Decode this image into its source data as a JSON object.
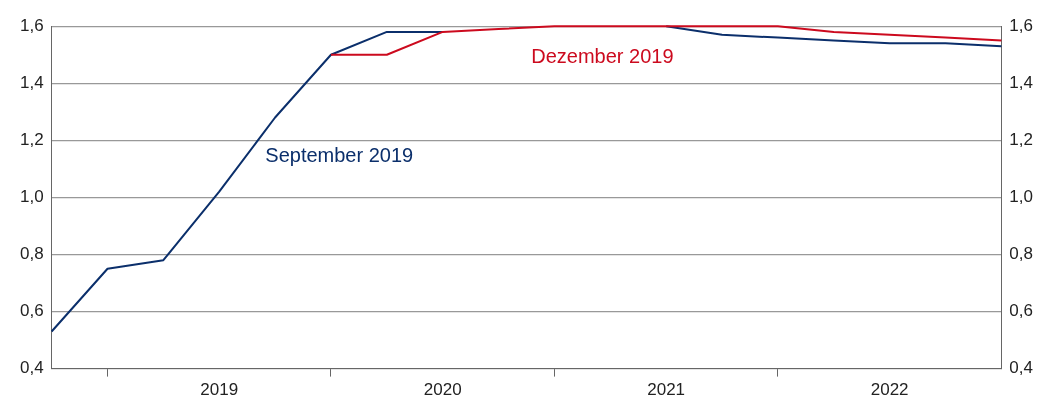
{
  "chart_data": {
    "type": "line",
    "x": [
      2018.75,
      2019,
      2019.25,
      2019.5,
      2019.75,
      2020,
      2020.25,
      2020.5,
      2020.75,
      2021,
      2021.25,
      2021.5,
      2021.75,
      2022,
      2022.25,
      2022.5,
      2022.75,
      2023
    ],
    "series": [
      {
        "name": "September 2019",
        "color": "#0b2f6b",
        "values": [
          0.53,
          0.75,
          0.78,
          1.02,
          1.28,
          1.5,
          1.58,
          1.58,
          null,
          null,
          null,
          1.6,
          1.57,
          1.56,
          1.55,
          1.54,
          1.54,
          1.53
        ]
      },
      {
        "name": "Dezember 2019",
        "color": "#cc0a1e",
        "values": [
          null,
          null,
          null,
          null,
          null,
          1.5,
          1.5,
          1.58,
          1.59,
          1.6,
          1.6,
          1.6,
          1.6,
          1.6,
          1.58,
          1.57,
          1.56,
          1.55
        ]
      }
    ],
    "xlim": [
      2018.75,
      2023
    ],
    "xticks": [
      {
        "value": 2019,
        "label": null
      },
      {
        "value": 2019.5,
        "label": "2019"
      },
      {
        "value": 2020,
        "label": null
      },
      {
        "value": 2020.5,
        "label": "2020"
      },
      {
        "value": 2021,
        "label": null
      },
      {
        "value": 2021.5,
        "label": "2021"
      },
      {
        "value": 2022,
        "label": null
      },
      {
        "value": 2022.5,
        "label": "2022"
      }
    ],
    "ylim": [
      0.4,
      1.6
    ],
    "yticks": [
      {
        "value": 0.4,
        "label": "0,4"
      },
      {
        "value": 0.6,
        "label": "0,6"
      },
      {
        "value": 0.8,
        "label": "0,8"
      },
      {
        "value": 1.0,
        "label": "1,0"
      },
      {
        "value": 1.2,
        "label": "1,2"
      },
      {
        "value": 1.4,
        "label": "1,4"
      },
      {
        "value": 1.6,
        "label": "1,6"
      }
    ],
    "y2lim": [
      0.4,
      1.6
    ],
    "y2ticks": [
      {
        "value": 0.4,
        "label": "0,4"
      },
      {
        "value": 0.6,
        "label": "0,6"
      },
      {
        "value": 0.8,
        "label": "0,8"
      },
      {
        "value": 1.0,
        "label": "1,0"
      },
      {
        "value": 1.2,
        "label": "1,2"
      },
      {
        "value": 1.4,
        "label": "1,4"
      },
      {
        "value": 1.6,
        "label": "1,6"
      }
    ],
    "grid": "y",
    "legend": false,
    "marker": "none",
    "line_style": "solid"
  }
}
